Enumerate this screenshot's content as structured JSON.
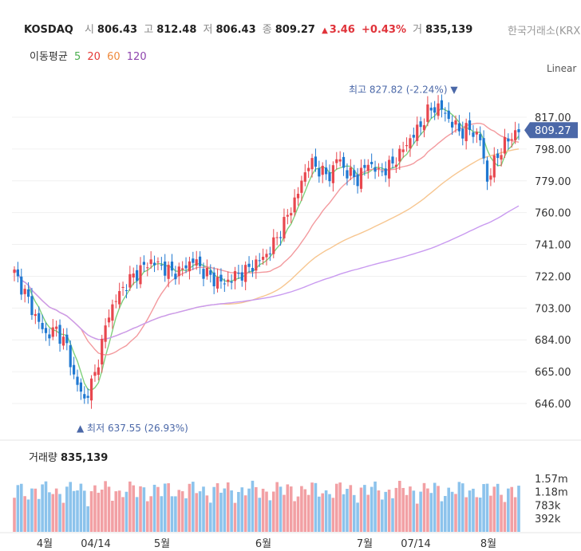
{
  "header": {
    "symbol": "KOSDAQ",
    "open_label": "시",
    "open": "806.43",
    "high_label": "고",
    "high": "812.48",
    "low_label": "저",
    "low": "806.43",
    "close_label": "종",
    "close": "809.27",
    "change": "3.46",
    "change_pct": "+0.43%",
    "volume_label": "거",
    "volume": "835,139",
    "exchange": "한국거래소(KRX)",
    "up_arrow": "▲"
  },
  "ma": {
    "label": "이동평균",
    "periods": [
      {
        "text": "5",
        "color": "#4caf50"
      },
      {
        "text": "20",
        "color": "#e53935"
      },
      {
        "text": "60",
        "color": "#ef8a3c"
      },
      {
        "text": "120",
        "color": "#8e44ad"
      }
    ]
  },
  "scale_mode": "Linear",
  "price_axis": {
    "ticks": [
      "817.00",
      "798.00",
      "779.00",
      "760.00",
      "741.00",
      "722.00",
      "703.00",
      "684.00",
      "665.00",
      "646.00"
    ],
    "tick_values": [
      817,
      798,
      779,
      760,
      741,
      722,
      703,
      684,
      665,
      646
    ],
    "current": "809.27",
    "current_value": 809.27,
    "current_color": "#4b68a8"
  },
  "annotations": {
    "high": "최고 827.82 (-2.24%) ▼",
    "high_value": 827.82,
    "low": "▲ 최저 637.55 (26.93%)",
    "low_value": 637.55
  },
  "volume_panel": {
    "label": "거래량",
    "value": "835,139",
    "ticks": [
      "1.57m",
      "1.18m",
      "783k",
      "392k"
    ],
    "tick_values": [
      1570000,
      1180000,
      783000,
      392000
    ]
  },
  "time_axis": [
    "4월",
    "04/14",
    "5월",
    "6월",
    "7월",
    "07/14",
    "8월"
  ],
  "colors": {
    "up": "#e8474e",
    "down": "#1f78d1",
    "vol_up": "#f2a0a4",
    "vol_down": "#8cc3ec",
    "ma5": "#7fd17c",
    "ma20": "#f39a9e",
    "ma60": "#f7c690",
    "ma120": "#c99af0"
  }
}
